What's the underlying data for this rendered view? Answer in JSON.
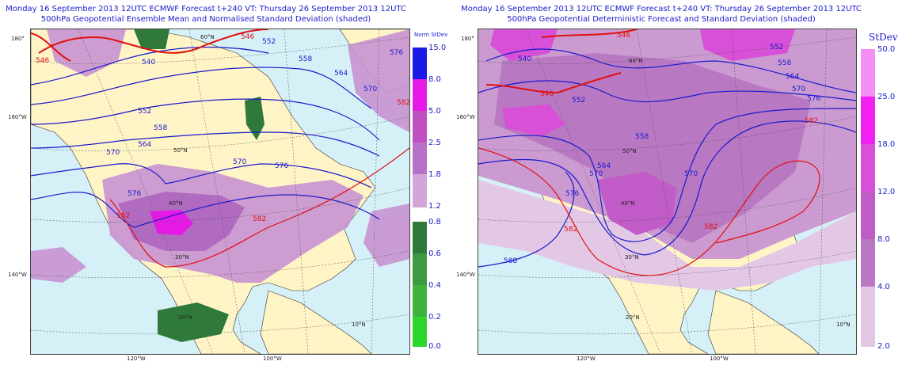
{
  "left_panel": {
    "title_line1": "Monday 16 September 2013 12UTC ECMWF Forecast t+240  VT: Thursday 26 September 2013 12UTC",
    "title_line2": "500hPa Geopotential Ensemble Mean and Normalised Standard Deviation (shaded)",
    "lat_labels": [
      "60°N",
      "50°N",
      "40°N",
      "30°N",
      "20°N",
      "10°N"
    ],
    "lon_labels": [
      "180°",
      "160°W",
      "140°W",
      "120°W",
      "100°W"
    ],
    "contour_labels": [
      "546",
      "540",
      "546",
      "552",
      "558",
      "564",
      "570",
      "576",
      "582",
      "552",
      "558",
      "564",
      "570",
      "576",
      "582",
      "570",
      "576",
      "582"
    ],
    "legend": {
      "title": "Norm StDev",
      "upper_ticks": [
        "15.0",
        "8.0",
        "5.0",
        "2.5",
        "1.8",
        "1.2"
      ],
      "upper_colors": [
        "#1a1ae6",
        "#e61ae6",
        "#c04fc0",
        "#b870c8",
        "#d2a6d8"
      ],
      "lower_ticks": [
        "0.8",
        "0.6",
        "0.4",
        "0.2",
        "0.0"
      ],
      "lower_colors": [
        "#2f7a3a",
        "#3c9a40",
        "#3cb43c",
        "#2dd62d"
      ]
    }
  },
  "right_panel": {
    "title_line1": "Monday 16 September 2013 12UTC ECMWF Forecast t+240  VT: Thursday 26 September 2013 12UTC",
    "title_line2": "500hPa Geopotential Deterministic Forecast and Standard Deviation (shaded)",
    "lat_labels": [
      "60°N",
      "50°N",
      "40°N",
      "30°N",
      "20°N",
      "10°N"
    ],
    "lon_labels": [
      "180°",
      "160°W",
      "140°W",
      "120°W",
      "100°W"
    ],
    "contour_labels": [
      "546",
      "540",
      "546",
      "552",
      "558",
      "564",
      "570",
      "576",
      "582",
      "552",
      "558",
      "564",
      "570",
      "576",
      "582",
      "588",
      "582",
      "570"
    ],
    "legend": {
      "title": "StDev",
      "ticks": [
        "50.0",
        "25.0",
        "18.0",
        "12.0",
        "8.0",
        "4.0",
        "2.0"
      ],
      "colors": [
        "#f58ef5",
        "#f21ff2",
        "#d84fd8",
        "#c05bc8",
        "#b978c2",
        "#cb9ad0",
        "#e3c8e6"
      ]
    }
  }
}
